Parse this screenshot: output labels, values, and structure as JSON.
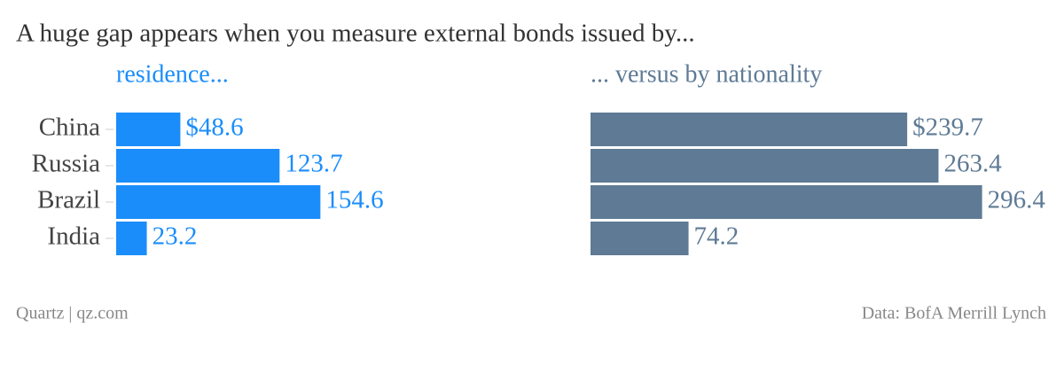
{
  "title": "A huge gap appears when you measure external bonds issued by...",
  "credit": "Quartz | qz.com",
  "source": "Data: BofA Merrill Lynch",
  "chart_data": [
    {
      "type": "bar",
      "orientation": "horizontal",
      "subtitle": "residence...",
      "color": "#1a8dfb",
      "categories": [
        "China",
        "Russia",
        "Brazil",
        "India"
      ],
      "values": [
        48.6,
        123.7,
        154.6,
        23.2
      ],
      "value_labels": [
        "$48.6",
        "123.7",
        "154.6",
        "23.2"
      ]
    },
    {
      "type": "bar",
      "orientation": "horizontal",
      "subtitle": "... versus by nationality",
      "color": "#5e7a95",
      "values": [
        239.7,
        263.4,
        296.4,
        74.2
      ],
      "value_labels": [
        "$239.7",
        "263.4",
        "296.4",
        "74.2"
      ]
    }
  ]
}
